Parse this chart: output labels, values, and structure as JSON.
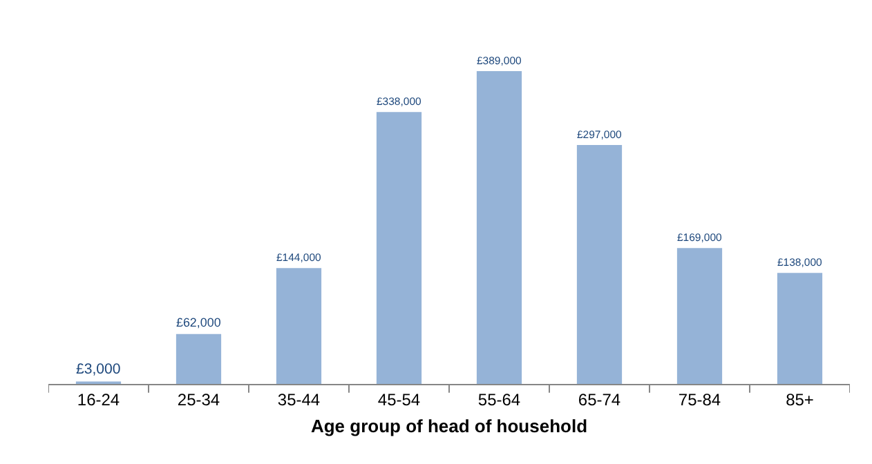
{
  "chart_data": {
    "type": "bar",
    "xlabel": "Age group of head of household",
    "categories": [
      "16-24",
      "25-34",
      "35-44",
      "45-54",
      "55-64",
      "65-74",
      "75-84",
      "85+"
    ],
    "values": [
      3000,
      62000,
      144000,
      338000,
      389000,
      297000,
      169000,
      138000
    ],
    "value_labels": [
      "£3,000",
      "£62,000",
      "£144,000",
      "£338,000",
      "£389,000",
      "£297,000",
      "£169,000",
      "£138,000"
    ],
    "color": "#95b3d7",
    "grid": false,
    "legend": false
  }
}
